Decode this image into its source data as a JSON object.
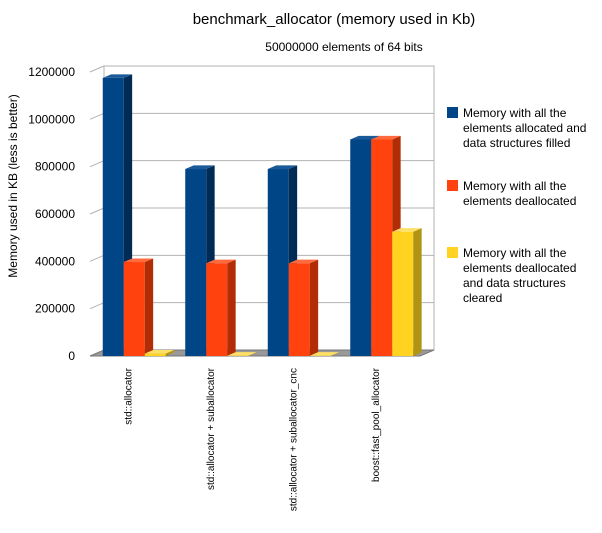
{
  "chart_data": {
    "type": "bar",
    "title": "benchmark_allocator (memory used in Kb)",
    "subtitle": "50000000 elements of 64 bits",
    "ylabel": "Memory used in KB (less is better)",
    "xlabel": "",
    "ylim": [
      0,
      1200000
    ],
    "yticks": [
      "0",
      "200000",
      "400000",
      "600000",
      "800000",
      "1000000",
      "1200000"
    ],
    "grid": true,
    "legend_position": "right",
    "categories": [
      "std::allocator",
      "std::allocator + suballocator",
      "std::allocator + suballocator_cnc",
      "boost::fast_pool_allocator"
    ],
    "series": [
      {
        "name": "Memory with all the elements allocated and data structures filled",
        "legend_lines": [
          "Memory with all the",
          "elements allocated and",
          "data structures filled"
        ],
        "color": "#004586",
        "side": "#002b55",
        "top": "#1a5a99",
        "values": [
          1175000,
          790000,
          790000,
          915000
        ]
      },
      {
        "name": "Memory with all the elements deallocated",
        "legend_lines": [
          "Memory with all the",
          "elements deallocated"
        ],
        "color": "#ff420e",
        "side": "#b22c05",
        "top": "#ff6a3e",
        "values": [
          397000,
          392000,
          392000,
          915000
        ]
      },
      {
        "name": "Memory with all the elements deallocated and data structures cleared",
        "legend_lines": [
          "Memory with all the",
          "elements deallocated",
          "and data structures",
          "cleared"
        ],
        "color": "#ffd320",
        "side": "#b29414",
        "top": "#ffe066",
        "values": [
          10000,
          1000,
          1000,
          525000
        ]
      }
    ]
  }
}
